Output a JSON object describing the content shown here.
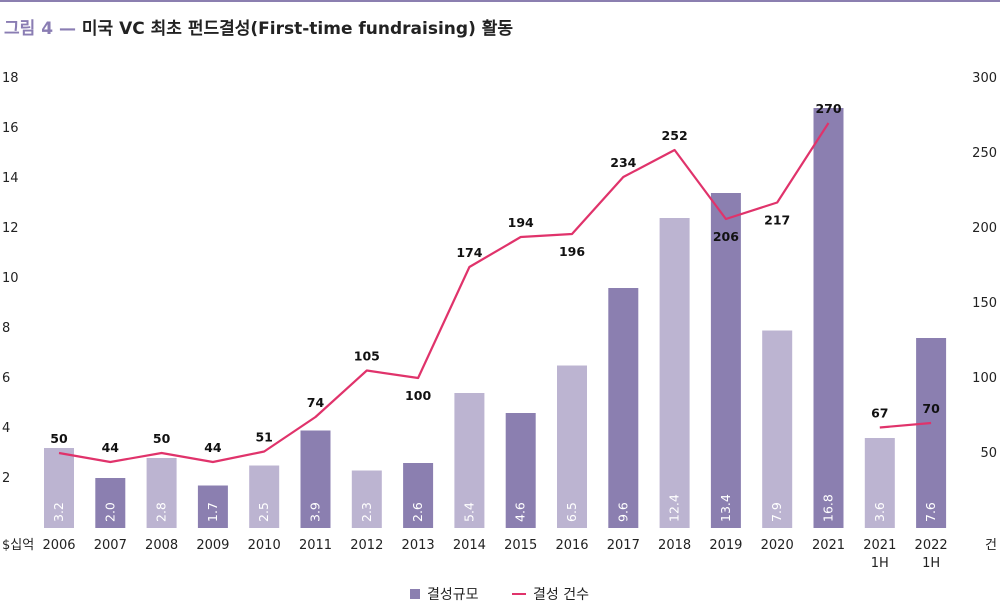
{
  "header": {
    "figure_label": "그림 4 —",
    "title": "미국 VC 최초 펀드결성(First-time fundraising) 활동"
  },
  "colors": {
    "bar_dark": "#8b7fb0",
    "bar_light": "#bcb4d1",
    "line": "#e0336b",
    "rule": "#8b7fb0"
  },
  "legend": {
    "bar_label": "결성규모",
    "line_label": "결성 건수"
  },
  "chart_data": {
    "type": "bar",
    "categories": [
      "2006",
      "2007",
      "2008",
      "2009",
      "2010",
      "2011",
      "2012",
      "2013",
      "2014",
      "2015",
      "2016",
      "2017",
      "2018",
      "2019",
      "2020",
      "2021",
      "2021\n1H",
      "2022\n1H"
    ],
    "series": [
      {
        "name": "결성규모",
        "type": "bar",
        "values": [
          3.2,
          2.0,
          2.8,
          1.7,
          2.5,
          3.9,
          2.3,
          2.6,
          5.4,
          4.6,
          6.5,
          9.6,
          12.4,
          13.4,
          7.9,
          16.8,
          3.6,
          7.6
        ],
        "labels": [
          "3.2",
          "2.0",
          "2.8",
          "1.7",
          "2.5",
          "3.9",
          "2.3",
          "2.6",
          "5.4",
          "4.6",
          "6.5",
          "9.6",
          "12.4",
          "13.4",
          "7.9",
          "16.8",
          "3.6",
          "7.6"
        ],
        "shade": [
          "light",
          "dark",
          "light",
          "dark",
          "light",
          "dark",
          "light",
          "dark",
          "light",
          "dark",
          "light",
          "dark",
          "light",
          "dark",
          "light",
          "dark",
          "light",
          "dark"
        ]
      },
      {
        "name": "결성 건수",
        "type": "line",
        "values": [
          50,
          44,
          50,
          44,
          51,
          74,
          105,
          100,
          174,
          194,
          196,
          234,
          252,
          206,
          217,
          270,
          67,
          70
        ]
      }
    ],
    "left_axis": {
      "unit": "$십억",
      "ylim": [
        0,
        18
      ],
      "ticks": [
        "2",
        "4",
        "6",
        "8",
        "10",
        "12",
        "14",
        "16",
        "18"
      ]
    },
    "right_axis": {
      "unit": "건",
      "ylim": [
        0,
        300
      ],
      "ticks": [
        "50",
        "100",
        "150",
        "200",
        "250",
        "300"
      ]
    },
    "grid": false,
    "legend_position": "bottom-center"
  }
}
